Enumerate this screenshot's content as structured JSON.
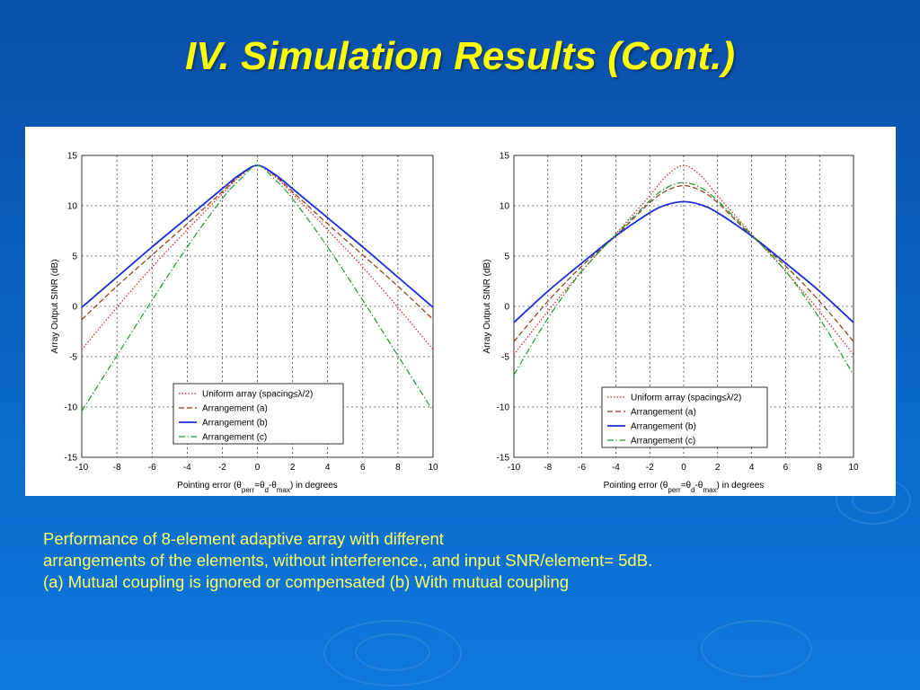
{
  "slide": {
    "title": "IV. Simulation Results (Cont.)",
    "caption": [
      "Performance of 8-element adaptive array with different",
      "arrangements of the elements, without interference., and input SNR/element= 5dB.",
      "(a) Mutual coupling is ignored or compensated (b) With mutual coupling"
    ]
  },
  "colors": {
    "background": "#0b66c6",
    "title": "#ffff00",
    "caption": "#ffff66",
    "uniform": "#e0201a",
    "arrangement_a": "#8b3a10",
    "arrangement_b": "#1a2fd6",
    "arrangement_c": "#1f9a2a"
  },
  "chart_data": [
    {
      "type": "line",
      "xlabel_parts": [
        "Pointing error (θ",
        "perr",
        "=θ",
        "d",
        "-θ",
        "max",
        ") in degrees"
      ],
      "ylabel": "Array Output SINR (dB)",
      "xlim": [
        -10,
        10
      ],
      "ylim": [
        -15,
        15
      ],
      "xticks": [
        -10,
        -8,
        -6,
        -4,
        -2,
        0,
        2,
        4,
        6,
        8,
        10
      ],
      "yticks": [
        -15,
        -10,
        -5,
        0,
        5,
        10,
        15
      ],
      "grid": true,
      "legend_position": "bottom-center",
      "x": [
        -10,
        -8,
        -6,
        -4,
        -2,
        -1,
        0,
        1,
        2,
        4,
        6,
        8,
        10
      ],
      "series": [
        {
          "name": "Uniform array (spacing≤λ/2)",
          "style": "dotted",
          "color": "#e0201a",
          "values": [
            -4.3,
            -0.1,
            3.9,
            7.6,
            11.2,
            12.9,
            14.0,
            12.9,
            11.2,
            7.6,
            3.9,
            -0.1,
            -4.3
          ]
        },
        {
          "name": "Arrangement (a)",
          "style": "dashed",
          "color": "#8b3a10",
          "values": [
            -1.3,
            2.0,
            5.1,
            8.2,
            11.4,
            13.0,
            14.0,
            13.0,
            11.4,
            8.2,
            5.1,
            2.0,
            -1.3
          ]
        },
        {
          "name": "Arrangement (b)",
          "style": "solid",
          "color": "#1a2fd6",
          "values": [
            -0.1,
            2.9,
            5.9,
            8.8,
            11.7,
            13.1,
            14.0,
            13.1,
            11.7,
            8.8,
            5.9,
            2.9,
            -0.1
          ]
        },
        {
          "name": "Arrangement (c)",
          "style": "dashdot",
          "color": "#1f9a2a",
          "values": [
            -10.4,
            -4.9,
            0.6,
            5.9,
            10.7,
            12.6,
            14.0,
            12.6,
            10.7,
            5.9,
            0.6,
            -4.9,
            -10.4
          ]
        }
      ]
    },
    {
      "type": "line",
      "xlabel_parts": [
        "Pointing error (θ",
        "perr",
        "=θ",
        "d",
        "-θ",
        "max",
        ") in degrees"
      ],
      "ylabel": "Array Output SINR (dB)",
      "xlim": [
        -10,
        10
      ],
      "ylim": [
        -15,
        15
      ],
      "xticks": [
        -10,
        -8,
        -6,
        -4,
        -2,
        0,
        2,
        4,
        6,
        8,
        10
      ],
      "yticks": [
        -15,
        -10,
        -5,
        0,
        5,
        10,
        15
      ],
      "grid": true,
      "legend_position": "bottom-right",
      "x": [
        -10,
        -8,
        -6,
        -4,
        -2,
        -1,
        0,
        1,
        2,
        4,
        6,
        8,
        10
      ],
      "series": [
        {
          "name": "Uniform array (spacing≤λ/2)",
          "style": "dotted",
          "color": "#e0201a",
          "values": [
            -4.8,
            -0.5,
            3.5,
            7.2,
            11.0,
            13.0,
            14.0,
            13.0,
            11.0,
            7.2,
            3.5,
            -0.5,
            -4.8
          ]
        },
        {
          "name": "Arrangement (a)",
          "style": "dashed",
          "color": "#8b3a10",
          "values": [
            -3.5,
            0.5,
            4.0,
            7.0,
            10.3,
            11.5,
            12.0,
            11.5,
            10.3,
            7.0,
            4.0,
            0.5,
            -3.5
          ]
        },
        {
          "name": "Arrangement (b)",
          "style": "solid",
          "color": "#1a2fd6",
          "values": [
            -1.6,
            1.5,
            4.3,
            7.0,
            9.3,
            10.1,
            10.4,
            10.1,
            9.3,
            7.0,
            4.3,
            1.5,
            -1.6
          ]
        },
        {
          "name": "Arrangement (c)",
          "style": "dashdot",
          "color": "#1f9a2a",
          "values": [
            -6.8,
            -1.2,
            3.5,
            7.1,
            10.5,
            11.8,
            12.3,
            11.8,
            10.5,
            7.1,
            3.5,
            -1.2,
            -6.8
          ]
        }
      ]
    }
  ]
}
